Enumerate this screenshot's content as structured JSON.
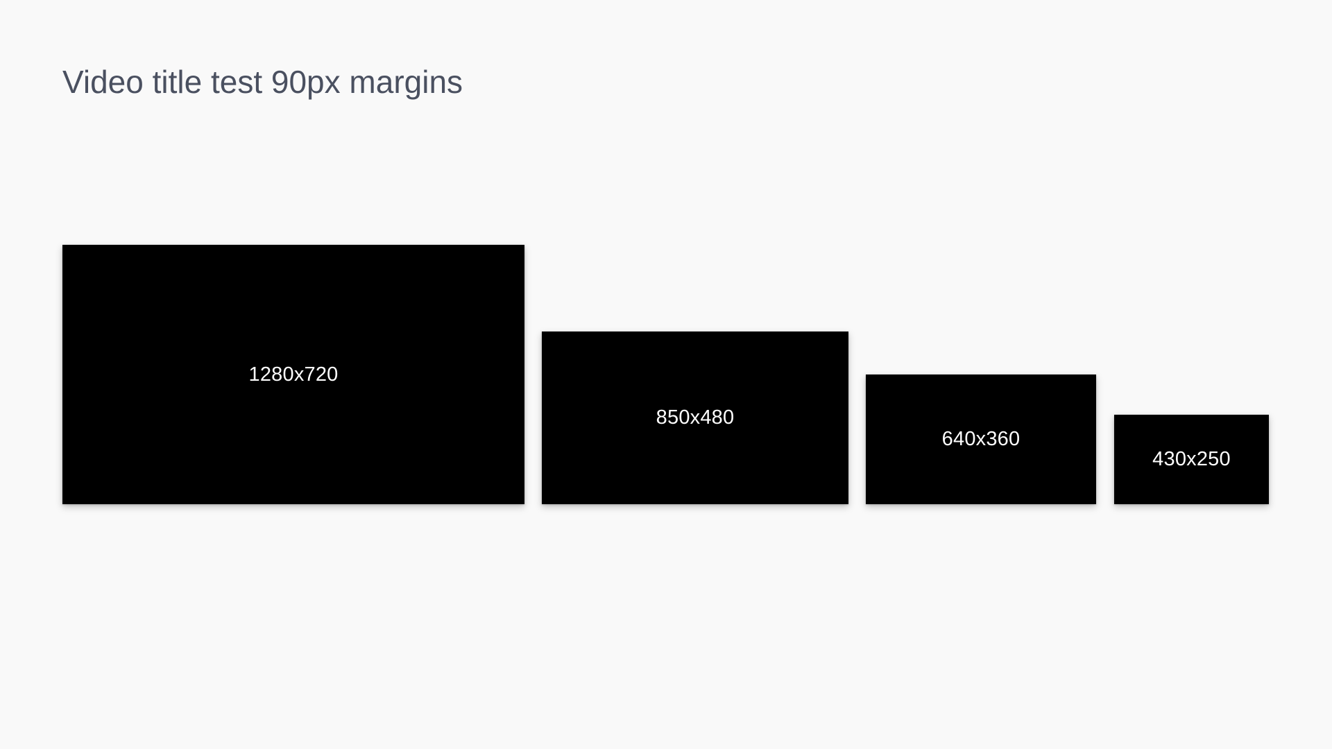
{
  "page": {
    "title": "Video title test 90px margins",
    "background_color": "#f9f9f9",
    "title_color": "#4a5060"
  },
  "videos": [
    {
      "label": "1280x720",
      "color": "#000000"
    },
    {
      "label": "850x480",
      "color": "#000000"
    },
    {
      "label": "640x360",
      "color": "#000000"
    },
    {
      "label": "430x250",
      "color": "#000000"
    }
  ]
}
